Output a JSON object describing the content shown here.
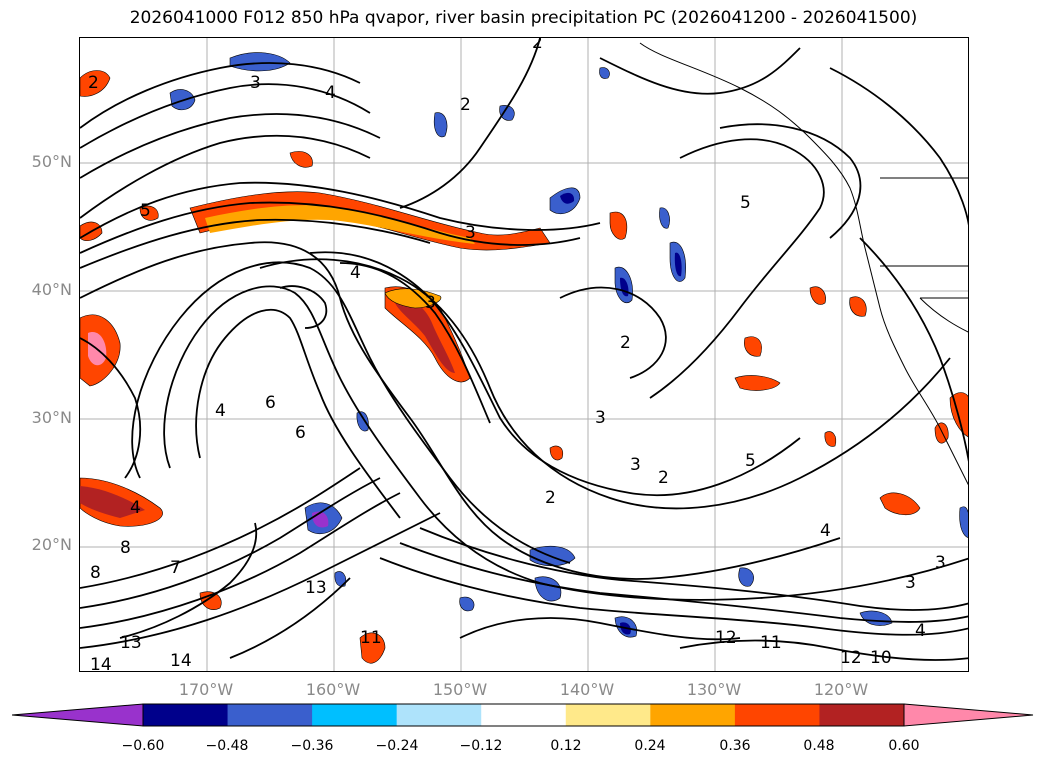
{
  "title": "2026041000 F012 850 hPa qvapor, river basin precipitation PC (2026041200 - 2026041500)",
  "lat_labels": [
    "50°N",
    "40°N",
    "30°N",
    "20°N"
  ],
  "lon_labels": [
    "170°W",
    "160°W",
    "150°W",
    "140°W",
    "130°W",
    "120°W"
  ],
  "colorbar": {
    "ticks": [
      "−0.60",
      "−0.48",
      "−0.36",
      "−0.24",
      "−0.12",
      "0.12",
      "0.24",
      "0.36",
      "0.48",
      "0.60"
    ],
    "colors": [
      "#9932cc",
      "#00008b",
      "#3a5fcd",
      "#00bfff",
      "#aee3fb",
      "#ffffff",
      "#ffe98a",
      "#ffa500",
      "#ff4500",
      "#b22222",
      "#ff88aa"
    ]
  },
  "contour_labels": [
    "2",
    "3",
    "4",
    "5",
    "6",
    "7",
    "8",
    "10",
    "11",
    "12",
    "13",
    "14"
  ]
}
